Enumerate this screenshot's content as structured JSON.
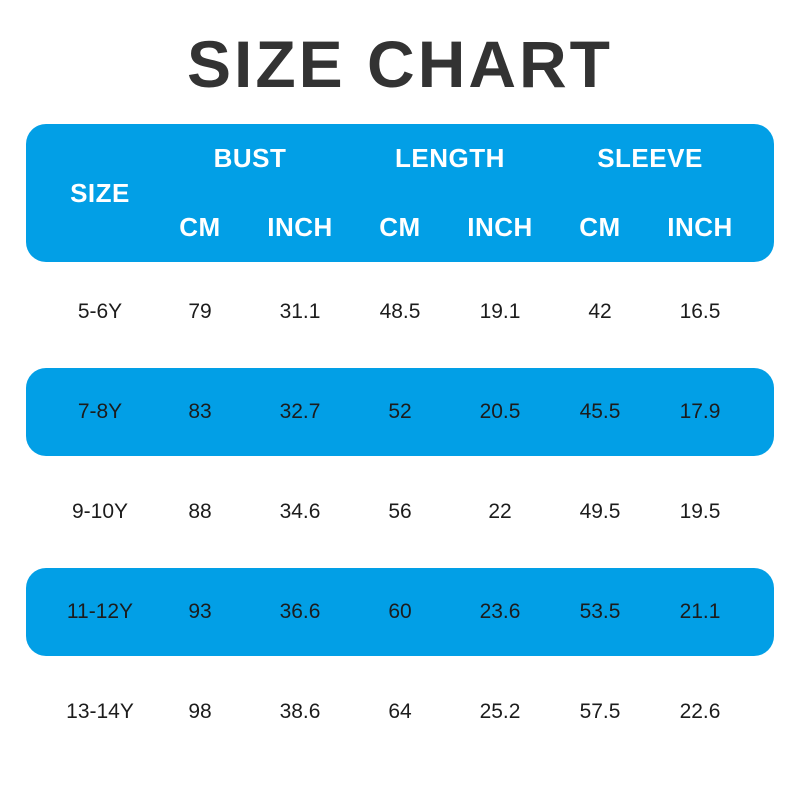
{
  "title": "SIZE CHART",
  "colors": {
    "accent_blue": "#029fe6",
    "title_text": "#333333",
    "header_text": "#ffffff",
    "body_text": "#1c1c1c",
    "background": "#ffffff"
  },
  "table": {
    "size_header": "SIZE",
    "groups": {
      "bust": "BUST",
      "length": "LENGTH",
      "sleeve": "SLEEVE"
    },
    "units": {
      "bust_cm": "CM",
      "bust_inch": "INCH",
      "length_cm": "CM",
      "length_inch": "INCH",
      "sleeve_cm": "CM",
      "sleeve_inch": "INCH"
    },
    "rows": [
      {
        "values": [
          "5-6Y",
          "79",
          "31.1",
          "48.5",
          "19.1",
          "42",
          "16.5"
        ]
      },
      {
        "values": [
          "7-8Y",
          "83",
          "32.7",
          "52",
          "20.5",
          "45.5",
          "17.9"
        ]
      },
      {
        "values": [
          "9-10Y",
          "88",
          "34.6",
          "56",
          "22",
          "49.5",
          "19.5"
        ]
      },
      {
        "values": [
          "11-12Y",
          "93",
          "36.6",
          "60",
          "23.6",
          "53.5",
          "21.1"
        ]
      },
      {
        "values": [
          "13-14Y",
          "98",
          "38.6",
          "64",
          "25.2",
          "57.5",
          "22.6"
        ]
      }
    ]
  },
  "chart_data": {
    "type": "table",
    "title": "SIZE CHART",
    "columns": [
      "SIZE",
      "BUST CM",
      "BUST INCH",
      "LENGTH CM",
      "LENGTH INCH",
      "SLEEVE CM",
      "SLEEVE INCH"
    ],
    "rows": [
      [
        "5-6Y",
        79,
        31.1,
        48.5,
        19.1,
        42,
        16.5
      ],
      [
        "7-8Y",
        83,
        32.7,
        52,
        20.5,
        45.5,
        17.9
      ],
      [
        "9-10Y",
        88,
        34.6,
        56,
        22,
        49.5,
        19.5
      ],
      [
        "11-12Y",
        93,
        36.6,
        60,
        23.6,
        53.5,
        21.1
      ],
      [
        "13-14Y",
        98,
        38.6,
        64,
        25.2,
        57.5,
        22.6
      ]
    ],
    "layout_hints": {
      "highlighted_rows": [
        1,
        3
      ],
      "highlight_color": "#029fe6",
      "header_color": "#029fe6"
    }
  }
}
